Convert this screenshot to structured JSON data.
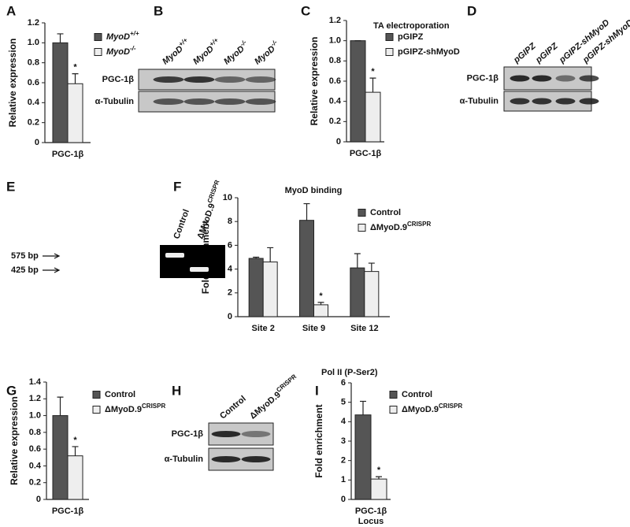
{
  "chart_data": [
    {
      "panel": "A",
      "type": "bar",
      "ylabel": "Relative expression",
      "categories": [
        "PGC-1β"
      ],
      "series": [
        {
          "name": "MyoD",
          "name_sup": "+/+",
          "color": "#555555",
          "values": [
            1.0
          ],
          "errors": [
            0.09
          ],
          "sig": [
            false
          ]
        },
        {
          "name": "MyoD",
          "name_sup": "-/-",
          "color": "#eeeeee",
          "values": [
            0.59
          ],
          "errors": [
            0.1
          ],
          "sig": [
            true
          ]
        }
      ],
      "sig_label": "*",
      "ylim": [
        0,
        1.2
      ],
      "yticks": [
        0,
        0.2,
        0.4,
        0.6,
        0.8,
        {
          "value": 1,
          "label": "1.0"
        },
        1.2
      ]
    },
    {
      "panel": "C",
      "type": "bar",
      "legend_title": "TA electroporation",
      "ylabel": "Relative expression",
      "categories": [
        "PGC-1β"
      ],
      "series": [
        {
          "name": "pGIPZ",
          "color": "#555555",
          "values": [
            1.0
          ],
          "errors": [
            0
          ],
          "sig": [
            false
          ]
        },
        {
          "name": "pGIPZ-shMyoD",
          "color": "#eeeeee",
          "values": [
            0.49
          ],
          "errors": [
            0.14
          ],
          "sig": [
            true
          ]
        }
      ],
      "sig_label": "*",
      "ylim": [
        0,
        1.2
      ],
      "yticks": [
        0,
        0.2,
        0.4,
        0.6,
        0.8,
        {
          "value": 1,
          "label": "1.0"
        },
        1.2
      ]
    },
    {
      "panel": "F",
      "type": "bar",
      "title": "MyoD binding",
      "ylabel": "Fold enrichment",
      "categories": [
        "Site 2",
        "Site 9",
        "Site 12"
      ],
      "series": [
        {
          "name": "Control",
          "color": "#555555",
          "values": [
            4.9,
            8.1,
            4.1
          ],
          "errors": [
            0.1,
            1.4,
            1.2
          ],
          "sig": [
            false,
            false,
            false
          ]
        },
        {
          "name": "ΔMyoD.9",
          "name_sup": "CRISPR",
          "color": "#eeeeee",
          "values": [
            4.6,
            1.0,
            3.8
          ],
          "errors": [
            1.2,
            0.2,
            0.7
          ],
          "sig": [
            false,
            true,
            false
          ]
        }
      ],
      "sig_label": "*",
      "ylim": [
        0,
        10
      ],
      "yticks": [
        0,
        2,
        4,
        6,
        8,
        10
      ]
    },
    {
      "panel": "G",
      "type": "bar",
      "ylabel": "Relative expression",
      "categories": [
        "PGC-1β"
      ],
      "series": [
        {
          "name": "Control",
          "color": "#555555",
          "values": [
            1.0
          ],
          "errors": [
            0.22
          ],
          "sig": [
            false
          ]
        },
        {
          "name": "ΔMyoD.9",
          "name_sup": "CRISPR",
          "color": "#eeeeee",
          "values": [
            0.52
          ],
          "errors": [
            0.11
          ],
          "sig": [
            true
          ]
        }
      ],
      "sig_label": "*",
      "ylim": [
        0,
        1.4
      ],
      "yticks": [
        0,
        0.2,
        0.4,
        0.6,
        0.8,
        {
          "value": 1,
          "label": "1.0"
        },
        1.2,
        1.4
      ]
    },
    {
      "panel": "I",
      "type": "bar",
      "title": "Pol II (P-Ser2)",
      "ylabel": "Fold enrichment",
      "categories": [
        "PGC-1β"
      ],
      "x_sublabel": "Locus",
      "series": [
        {
          "name": "Control",
          "color": "#555555",
          "values": [
            4.35
          ],
          "errors": [
            0.7
          ],
          "sig": [
            false
          ]
        },
        {
          "name": "ΔMyoD.9",
          "name_sup": "CRISPR",
          "color": "#eeeeee",
          "values": [
            1.05
          ],
          "errors": [
            0.12
          ],
          "sig": [
            true
          ]
        }
      ],
      "sig_label": "*",
      "ylim": [
        0,
        6
      ],
      "yticks": [
        0,
        1,
        2,
        3,
        4,
        5,
        6
      ]
    }
  ],
  "blots": [
    {
      "panel": "B",
      "lanes": [
        {
          "text": "MyoD",
          "sup": "+/+"
        },
        {
          "text": "MyoD",
          "sup": "+/+"
        },
        {
          "text": "MyoD",
          "sup": "-/-"
        },
        {
          "text": "MyoD",
          "sup": "-/-"
        }
      ],
      "rows": [
        "PGC-1β",
        "α-Tubulin"
      ]
    },
    {
      "panel": "D",
      "lanes": [
        "pGIPZ",
        "pGIPZ",
        "pGIPZ-shMyoD",
        "pGIPZ-shMyoD"
      ],
      "rows": [
        "PGC-1β",
        "α-Tubulin"
      ]
    },
    {
      "panel": "E",
      "lanes": [
        "Control",
        {
          "text": "ΔMyoD.9",
          "sup": "CRISPR"
        }
      ],
      "markers": [
        "575 bp",
        "425 bp"
      ]
    },
    {
      "panel": "H",
      "lanes": [
        "Control",
        {
          "text": "ΔMyoD.9",
          "sup": "CRISPR"
        }
      ],
      "rows": [
        "PGC-1β",
        "α-Tubulin"
      ]
    }
  ]
}
